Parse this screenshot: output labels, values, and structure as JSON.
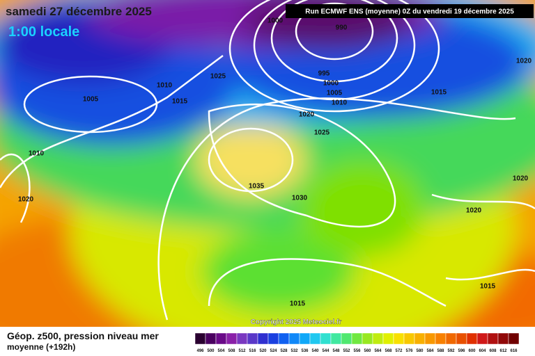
{
  "header": {
    "date": "samedi 27 décembre 2025",
    "time": "1:00 locale",
    "run": "Run ECMWF ENS (moyenne) 0Z du vendredi 19 décembre 2025"
  },
  "isobar_labels": [
    "1000",
    "990",
    "995",
    "1000",
    "1005",
    "1010",
    "1015",
    "1020",
    "1025",
    "1010",
    "1015",
    "1005",
    "1010",
    "1020",
    "1020",
    "1025",
    "1035",
    "1030",
    "1020",
    "1020",
    "1015",
    "1015"
  ],
  "copyright": "Copyright 2025 Meteociel.fr",
  "legend": {
    "title": "Géop. z500, pression niveau mer",
    "subtitle": "moyenne   (+192h)",
    "scale": [
      "496",
      "500",
      "504",
      "508",
      "512",
      "516",
      "520",
      "524",
      "528",
      "532",
      "536",
      "540",
      "544",
      "548",
      "552",
      "556",
      "560",
      "564",
      "568",
      "572",
      "576",
      "580",
      "584",
      "588",
      "592",
      "596",
      "600",
      "604",
      "608",
      "612",
      "616"
    ]
  }
}
